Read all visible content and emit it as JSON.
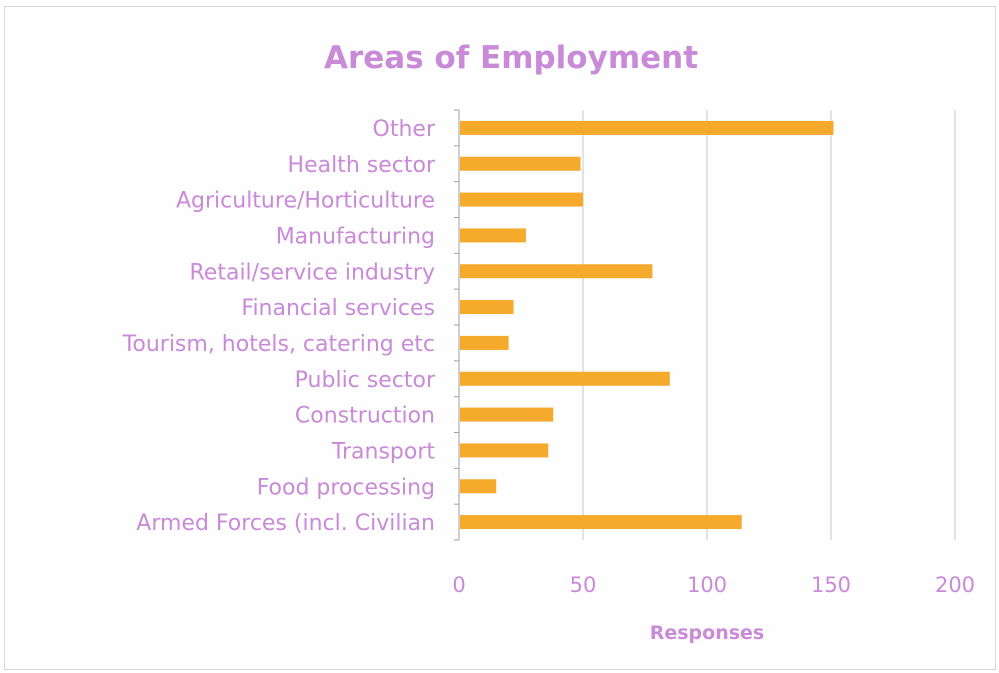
{
  "chart_data": {
    "type": "bar",
    "orientation": "horizontal",
    "title": "Areas of Employment",
    "xlabel": "Responses",
    "ylabel": "",
    "categories": [
      "Other",
      "Health sector",
      "Agriculture/Horticulture",
      "Manufacturing",
      "Retail/service industry",
      "Financial services",
      "Tourism, hotels, catering etc",
      "Public sector",
      "Construction",
      "Transport",
      "Food processing",
      "Armed Forces (incl. Civilian"
    ],
    "values": [
      151,
      49,
      50,
      27,
      78,
      22,
      20,
      85,
      38,
      36,
      15,
      114
    ],
    "xlim": [
      0,
      200
    ],
    "xticks": [
      "0",
      "50",
      "100",
      "150",
      "200"
    ],
    "grid": "vertical",
    "legend": "none",
    "colors": {
      "bar": "#f5aa2c",
      "text": "#c98ad8",
      "grid": "#c8c8c8",
      "axis": "#a0a0a0"
    }
  }
}
